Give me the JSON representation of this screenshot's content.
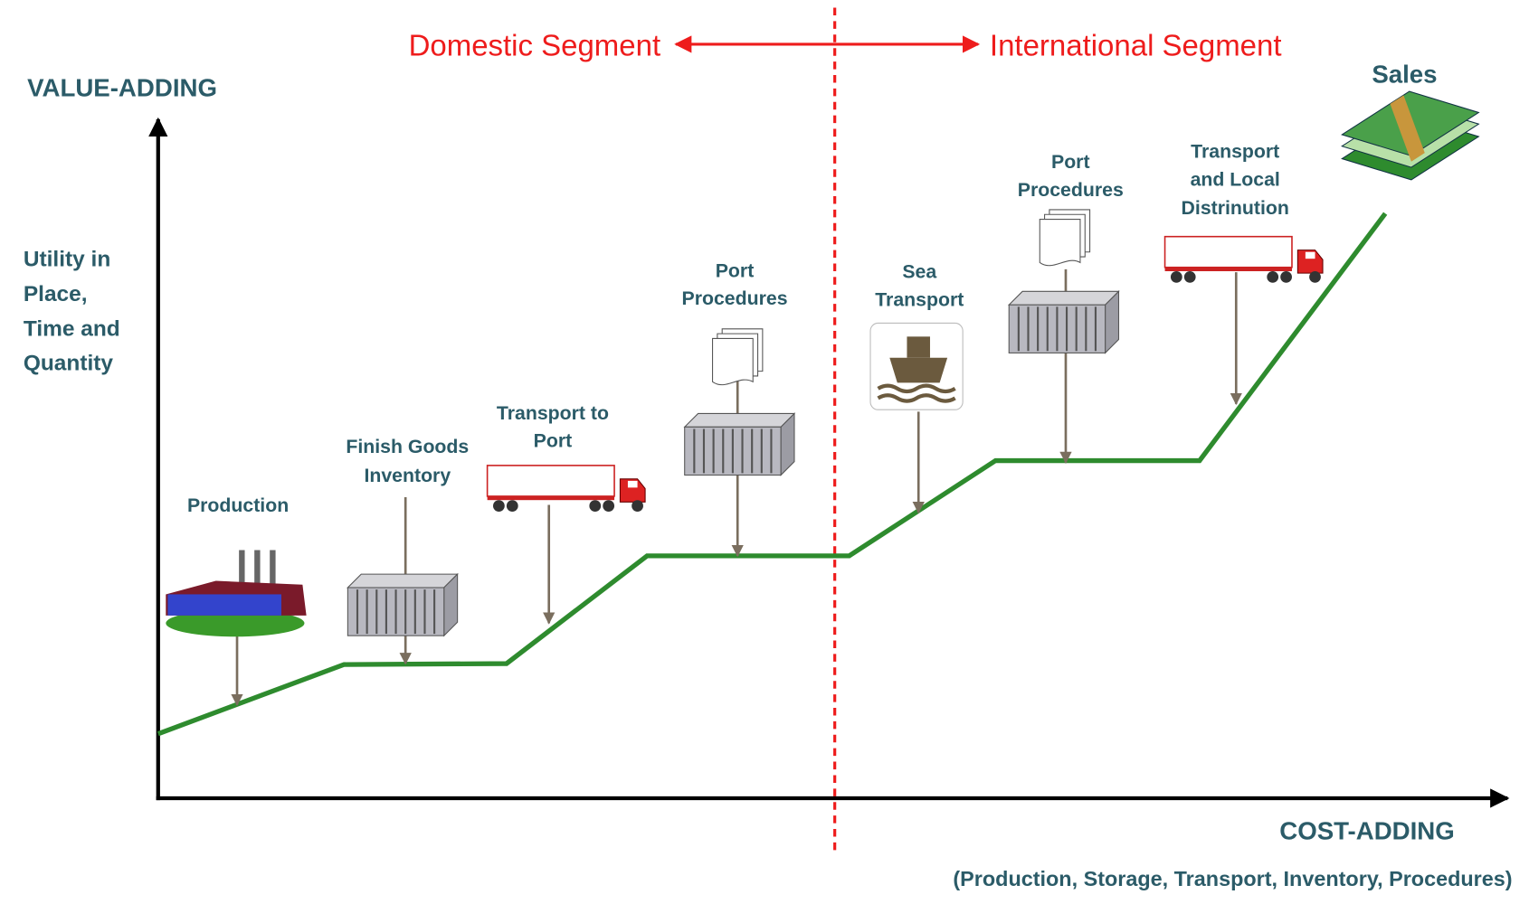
{
  "segments": {
    "domestic": "Domestic Segment",
    "international": "International Segment"
  },
  "axes": {
    "y_title": "VALUE-ADDING",
    "y_subtitle": [
      "Utility in",
      "Place,",
      "Time and",
      "Quantity"
    ],
    "x_title": "COST-ADDING",
    "x_subtitle": "(Production, Storage, Transport, Inventory, Procedures)"
  },
  "stages": [
    {
      "label": [
        "Production"
      ]
    },
    {
      "label": [
        "Finish Goods",
        "Inventory"
      ]
    },
    {
      "label": [
        "Transport to",
        "Port"
      ]
    },
    {
      "label": [
        "Port",
        "Procedures"
      ]
    },
    {
      "label": [
        "Sea",
        "Transport"
      ]
    },
    {
      "label": [
        "Port",
        "Procedures"
      ]
    },
    {
      "label": [
        "Transport",
        "and Local",
        "Distrinution"
      ]
    },
    {
      "label": [
        "Sales"
      ]
    }
  ]
}
